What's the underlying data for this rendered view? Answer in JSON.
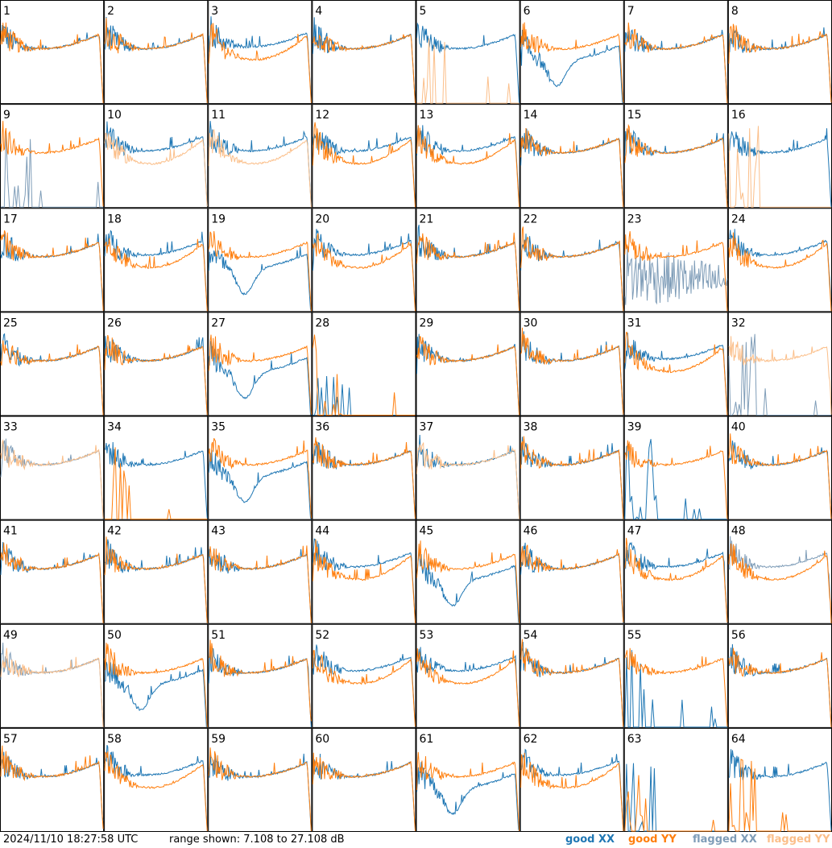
{
  "footer": {
    "timestamp": "2024/11/10 18:27:58 UTC",
    "range_text": "range shown: 7.108 to 27.108 dB"
  },
  "legend": {
    "good_xx": "good XX",
    "good_yy": "good YY",
    "flagged_xx": "flagged XX",
    "flagged_yy": "flagged YY"
  },
  "colors": {
    "good_xx": "#1f77b4",
    "good_yy": "#ff7f0e",
    "flagged_xx": "#7f9db8",
    "flagged_yy": "#fbbf8a"
  },
  "chart_data": {
    "type": "line",
    "grid_rows": 8,
    "grid_cols": 8,
    "ylim_db": [
      7.108,
      27.108
    ],
    "panels": [
      {
        "id": "1",
        "xx": "good",
        "yy": "good",
        "shape": "normal"
      },
      {
        "id": "2",
        "xx": "good",
        "yy": "good",
        "shape": "normal"
      },
      {
        "id": "3",
        "xx": "good",
        "yy": "good",
        "shape": "split"
      },
      {
        "id": "4",
        "xx": "good",
        "yy": "good",
        "shape": "normal"
      },
      {
        "id": "5",
        "xx": "good",
        "yy": "flagged",
        "shape": "yy_dead"
      },
      {
        "id": "6",
        "xx": "good",
        "yy": "good",
        "shape": "xx_dip"
      },
      {
        "id": "7",
        "xx": "good",
        "yy": "good",
        "shape": "normal"
      },
      {
        "id": "8",
        "xx": "good",
        "yy": "good",
        "shape": "normal"
      },
      {
        "id": "9",
        "xx": "flagged",
        "yy": "good",
        "shape": "xx_dead"
      },
      {
        "id": "10",
        "xx": "good",
        "yy": "flagged",
        "shape": "split"
      },
      {
        "id": "11",
        "xx": "good",
        "yy": "flagged",
        "shape": "split"
      },
      {
        "id": "12",
        "xx": "good",
        "yy": "good",
        "shape": "split"
      },
      {
        "id": "13",
        "xx": "good",
        "yy": "good",
        "shape": "split"
      },
      {
        "id": "14",
        "xx": "good",
        "yy": "good",
        "shape": "normal"
      },
      {
        "id": "15",
        "xx": "good",
        "yy": "good",
        "shape": "normal"
      },
      {
        "id": "16",
        "xx": "good",
        "yy": "flagged",
        "shape": "yy_dead"
      },
      {
        "id": "17",
        "xx": "good",
        "yy": "good",
        "shape": "normal"
      },
      {
        "id": "18",
        "xx": "good",
        "yy": "good",
        "shape": "split"
      },
      {
        "id": "19",
        "xx": "good",
        "yy": "good",
        "shape": "xx_dip"
      },
      {
        "id": "20",
        "xx": "good",
        "yy": "good",
        "shape": "split"
      },
      {
        "id": "21",
        "xx": "good",
        "yy": "good",
        "shape": "normal"
      },
      {
        "id": "22",
        "xx": "good",
        "yy": "good",
        "shape": "normal"
      },
      {
        "id": "23",
        "xx": "flagged",
        "yy": "good",
        "shape": "xx_noise"
      },
      {
        "id": "24",
        "xx": "good",
        "yy": "good",
        "shape": "split"
      },
      {
        "id": "25",
        "xx": "good",
        "yy": "good",
        "shape": "normal"
      },
      {
        "id": "26",
        "xx": "good",
        "yy": "good",
        "shape": "normal"
      },
      {
        "id": "27",
        "xx": "good",
        "yy": "good",
        "shape": "xx_dip"
      },
      {
        "id": "28",
        "xx": "good",
        "yy": "good",
        "shape": "both_dead"
      },
      {
        "id": "29",
        "xx": "good",
        "yy": "good",
        "shape": "normal"
      },
      {
        "id": "30",
        "xx": "good",
        "yy": "good",
        "shape": "normal"
      },
      {
        "id": "31",
        "xx": "good",
        "yy": "good",
        "shape": "split"
      },
      {
        "id": "32",
        "xx": "flagged",
        "yy": "flagged",
        "shape": "yy_noise"
      },
      {
        "id": "33",
        "xx": "flagged",
        "yy": "flagged",
        "shape": "normal"
      },
      {
        "id": "34",
        "xx": "good",
        "yy": "good",
        "shape": "yy_dead"
      },
      {
        "id": "35",
        "xx": "good",
        "yy": "good",
        "shape": "xx_dip"
      },
      {
        "id": "36",
        "xx": "good",
        "yy": "good",
        "shape": "normal"
      },
      {
        "id": "37",
        "xx": "good",
        "yy": "flagged",
        "shape": "normal"
      },
      {
        "id": "38",
        "xx": "good",
        "yy": "good",
        "shape": "normal"
      },
      {
        "id": "39",
        "xx": "good",
        "yy": "good",
        "shape": "xx_dead"
      },
      {
        "id": "40",
        "xx": "good",
        "yy": "good",
        "shape": "normal"
      },
      {
        "id": "41",
        "xx": "good",
        "yy": "good",
        "shape": "normal"
      },
      {
        "id": "42",
        "xx": "good",
        "yy": "good",
        "shape": "normal"
      },
      {
        "id": "43",
        "xx": "good",
        "yy": "good",
        "shape": "normal"
      },
      {
        "id": "44",
        "xx": "good",
        "yy": "good",
        "shape": "split"
      },
      {
        "id": "45",
        "xx": "good",
        "yy": "good",
        "shape": "xx_dip"
      },
      {
        "id": "46",
        "xx": "good",
        "yy": "good",
        "shape": "normal"
      },
      {
        "id": "47",
        "xx": "good",
        "yy": "good",
        "shape": "split"
      },
      {
        "id": "48",
        "xx": "flagged",
        "yy": "good",
        "shape": "split"
      },
      {
        "id": "49",
        "xx": "flagged",
        "yy": "flagged",
        "shape": "normal"
      },
      {
        "id": "50",
        "xx": "good",
        "yy": "good",
        "shape": "xx_dip"
      },
      {
        "id": "51",
        "xx": "good",
        "yy": "good",
        "shape": "normal"
      },
      {
        "id": "52",
        "xx": "good",
        "yy": "good",
        "shape": "split"
      },
      {
        "id": "53",
        "xx": "good",
        "yy": "good",
        "shape": "split"
      },
      {
        "id": "54",
        "xx": "good",
        "yy": "good",
        "shape": "normal"
      },
      {
        "id": "55",
        "xx": "good",
        "yy": "good",
        "shape": "xx_dead"
      },
      {
        "id": "56",
        "xx": "good",
        "yy": "good",
        "shape": "normal"
      },
      {
        "id": "57",
        "xx": "good",
        "yy": "good",
        "shape": "normal"
      },
      {
        "id": "58",
        "xx": "good",
        "yy": "good",
        "shape": "split"
      },
      {
        "id": "59",
        "xx": "good",
        "yy": "good",
        "shape": "normal"
      },
      {
        "id": "60",
        "xx": "good",
        "yy": "good",
        "shape": "normal"
      },
      {
        "id": "61",
        "xx": "good",
        "yy": "good",
        "shape": "xx_dip"
      },
      {
        "id": "62",
        "xx": "good",
        "yy": "good",
        "shape": "split"
      },
      {
        "id": "63",
        "xx": "good",
        "yy": "good",
        "shape": "both_dead"
      },
      {
        "id": "64",
        "xx": "good",
        "yy": "good",
        "shape": "yy_low"
      }
    ]
  }
}
